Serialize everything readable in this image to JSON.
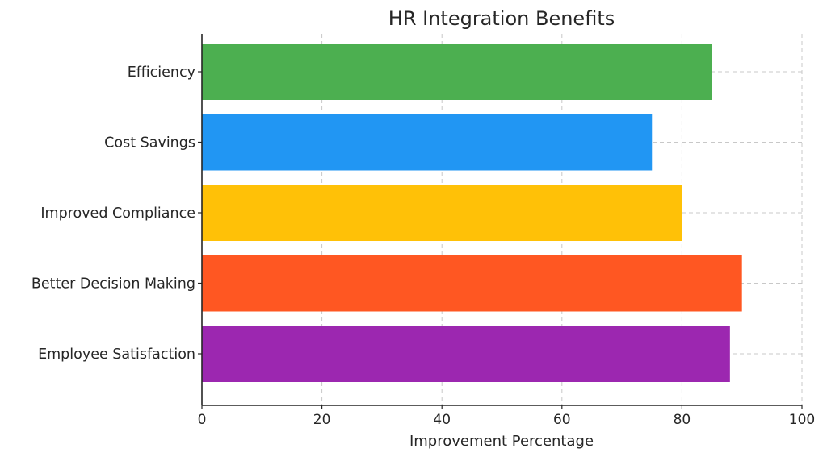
{
  "chart_data": {
    "type": "bar",
    "orientation": "horizontal",
    "title": "HR Integration Benefits",
    "xlabel": "Improvement Percentage",
    "ylabel": "",
    "xlim": [
      0,
      100
    ],
    "xticks": [
      0,
      20,
      40,
      60,
      80,
      100
    ],
    "grid": true,
    "categories": [
      "Employee Satisfaction",
      "Better Decision Making",
      "Improved Compliance",
      "Cost Savings",
      "Efficiency"
    ],
    "values": [
      88,
      90,
      80,
      75,
      85
    ],
    "colors": [
      "#9c27b0",
      "#ff5722",
      "#ffc107",
      "#2196f3",
      "#4caf50"
    ]
  }
}
